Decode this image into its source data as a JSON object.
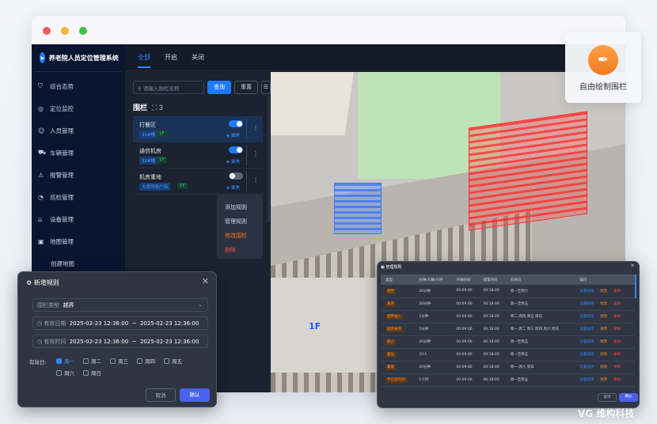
{
  "app": {
    "title": "养老院人员定位管理系统"
  },
  "sidebar": {
    "items": [
      {
        "icon": "shield-icon",
        "glyph": "⛉",
        "label": "综合态势"
      },
      {
        "icon": "location-monitor-icon",
        "glyph": "◎",
        "label": "定位监控"
      },
      {
        "icon": "person-icon",
        "glyph": "☺",
        "label": "人员管理"
      },
      {
        "icon": "car-icon",
        "glyph": "⛟",
        "label": "车辆管理"
      },
      {
        "icon": "alarm-icon",
        "glyph": "⚠",
        "label": "报警管理"
      },
      {
        "icon": "patrol-icon",
        "glyph": "◔",
        "label": "巡检管理"
      },
      {
        "icon": "device-icon",
        "glyph": "⌂",
        "label": "设备管理"
      },
      {
        "icon": "map-icon",
        "glyph": "▣",
        "label": "地图管理"
      }
    ],
    "sub_items": [
      "创建地图"
    ]
  },
  "tabs": [
    "全部",
    "开启",
    "关闭"
  ],
  "search": {
    "placeholder": "请输入围栏名称",
    "query": "查询",
    "reset": "重置"
  },
  "fences": {
    "title": "围栏",
    "count": "3",
    "focus_label": "聚焦",
    "items": [
      {
        "name": "打餐区",
        "building": "31#楼",
        "floor": "1F",
        "enabled": true
      },
      {
        "name": "通信机房",
        "building": "31#楼",
        "floor": "1F",
        "enabled": true
      },
      {
        "name": "机房重地",
        "building": "大草坪原广场",
        "floor": "5F",
        "enabled": false
      }
    ]
  },
  "context_menu": {
    "items": [
      "添加规则",
      "管理规则",
      "修改围栏",
      "删除"
    ],
    "colors": [
      "#cfd6e4",
      "#cfd6e4",
      "#ff7a1a",
      "#f04646"
    ]
  },
  "map": {
    "floor_label": "1F"
  },
  "float_card": {
    "label": "自由绘制围栏",
    "icon": "pen-icon"
  },
  "new_rule": {
    "title": "新增规则",
    "type_label": "围栏类型",
    "type_value": "越界",
    "date_label": "有效日期",
    "date_start": "2025-02-23 12:36:00",
    "date_end": "2025-02-23 12:36:00",
    "time_label": "有效时间",
    "time_start": "2025-02-23 12:36:00",
    "time_end": "2025-02-23 12:36:00",
    "sep": "~",
    "days_label": "有效日:",
    "days": [
      {
        "label": "周一",
        "checked": true
      },
      {
        "label": "周二",
        "checked": false
      },
      {
        "label": "周三",
        "checked": false
      },
      {
        "label": "周四",
        "checked": false
      },
      {
        "label": "周五",
        "checked": false
      },
      {
        "label": "周六",
        "checked": false
      },
      {
        "label": "周日",
        "checked": false
      }
    ],
    "cancel": "取消",
    "confirm": "确认"
  },
  "manage_rules": {
    "title": "管理规则",
    "columns": [
      "类型",
      "分钟/人数/小时",
      "开始时间",
      "结束时间",
      "有效日",
      "操作"
    ],
    "rows": [
      [
        "越界",
        "20分钟",
        "00:09:00",
        "00:18:00",
        "周一至周六"
      ],
      [
        "离开",
        "20分钟",
        "00:09:00",
        "00:18:00",
        "周一至周五"
      ],
      [
        "越界进入",
        "1分钟",
        "00:09:00",
        "00:18:00",
        "周二 周四 周五 周日"
      ],
      [
        "越界离开",
        "5分钟",
        "00:09:00",
        "00:18:00",
        "周一 周二 周三 周四 周六 周日"
      ],
      [
        "静止",
        "20分钟",
        "00:09:00",
        "00:18:00",
        "周一至周五"
      ],
      [
        "超员",
        "10人",
        "00:09:00",
        "00:18:00",
        "周一至周五"
      ],
      [
        "聚集",
        "20分钟",
        "00:09:00",
        "00:18:00",
        "周一 周六 周日"
      ],
      [
        "不在岗时间",
        "1小时",
        "00:09:00",
        "00:18:00",
        "周一至周五"
      ]
    ],
    "actions": [
      "设置规则",
      "修改",
      "删除"
    ],
    "cancel": "取消",
    "confirm": "确认"
  },
  "watermark": {
    "brand": "维构科技"
  }
}
